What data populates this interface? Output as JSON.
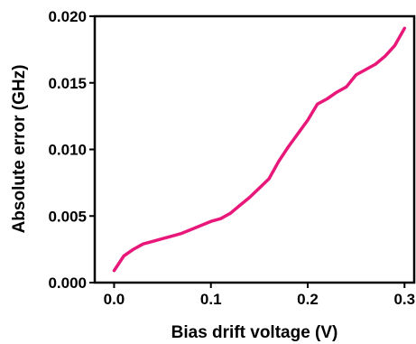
{
  "chart_data": {
    "type": "line",
    "title": "",
    "xlabel": "Bias drift voltage (V)",
    "ylabel": "Absolute error (GHz)",
    "xlim": [
      -0.02,
      0.31
    ],
    "ylim": [
      0.0,
      0.02
    ],
    "grid": false,
    "legend": "none",
    "x_ticks": [
      0.0,
      0.1,
      0.2,
      0.3
    ],
    "x_tick_labels": [
      "0.0",
      "0.1",
      "0.2",
      "0.3"
    ],
    "y_ticks": [
      0.0,
      0.005,
      0.01,
      0.015,
      0.02
    ],
    "y_tick_labels": [
      "0.000",
      "0.005",
      "0.010",
      "0.015",
      "0.020"
    ],
    "series": [
      {
        "color": "#e8177a",
        "x": [
          0.0,
          0.01,
          0.02,
          0.03,
          0.04,
          0.05,
          0.06,
          0.07,
          0.08,
          0.09,
          0.1,
          0.11,
          0.12,
          0.13,
          0.14,
          0.15,
          0.16,
          0.17,
          0.18,
          0.19,
          0.2,
          0.21,
          0.22,
          0.23,
          0.24,
          0.25,
          0.26,
          0.27,
          0.28,
          0.29,
          0.3
        ],
        "y": [
          0.0009,
          0.002,
          0.0025,
          0.0029,
          0.0031,
          0.0033,
          0.0035,
          0.0037,
          0.004,
          0.0043,
          0.0046,
          0.0048,
          0.0052,
          0.0058,
          0.0064,
          0.0071,
          0.0078,
          0.0091,
          0.0102,
          0.0112,
          0.0122,
          0.0134,
          0.0138,
          0.0143,
          0.0147,
          0.0156,
          0.016,
          0.0164,
          0.017,
          0.0178,
          0.0191
        ]
      }
    ]
  }
}
